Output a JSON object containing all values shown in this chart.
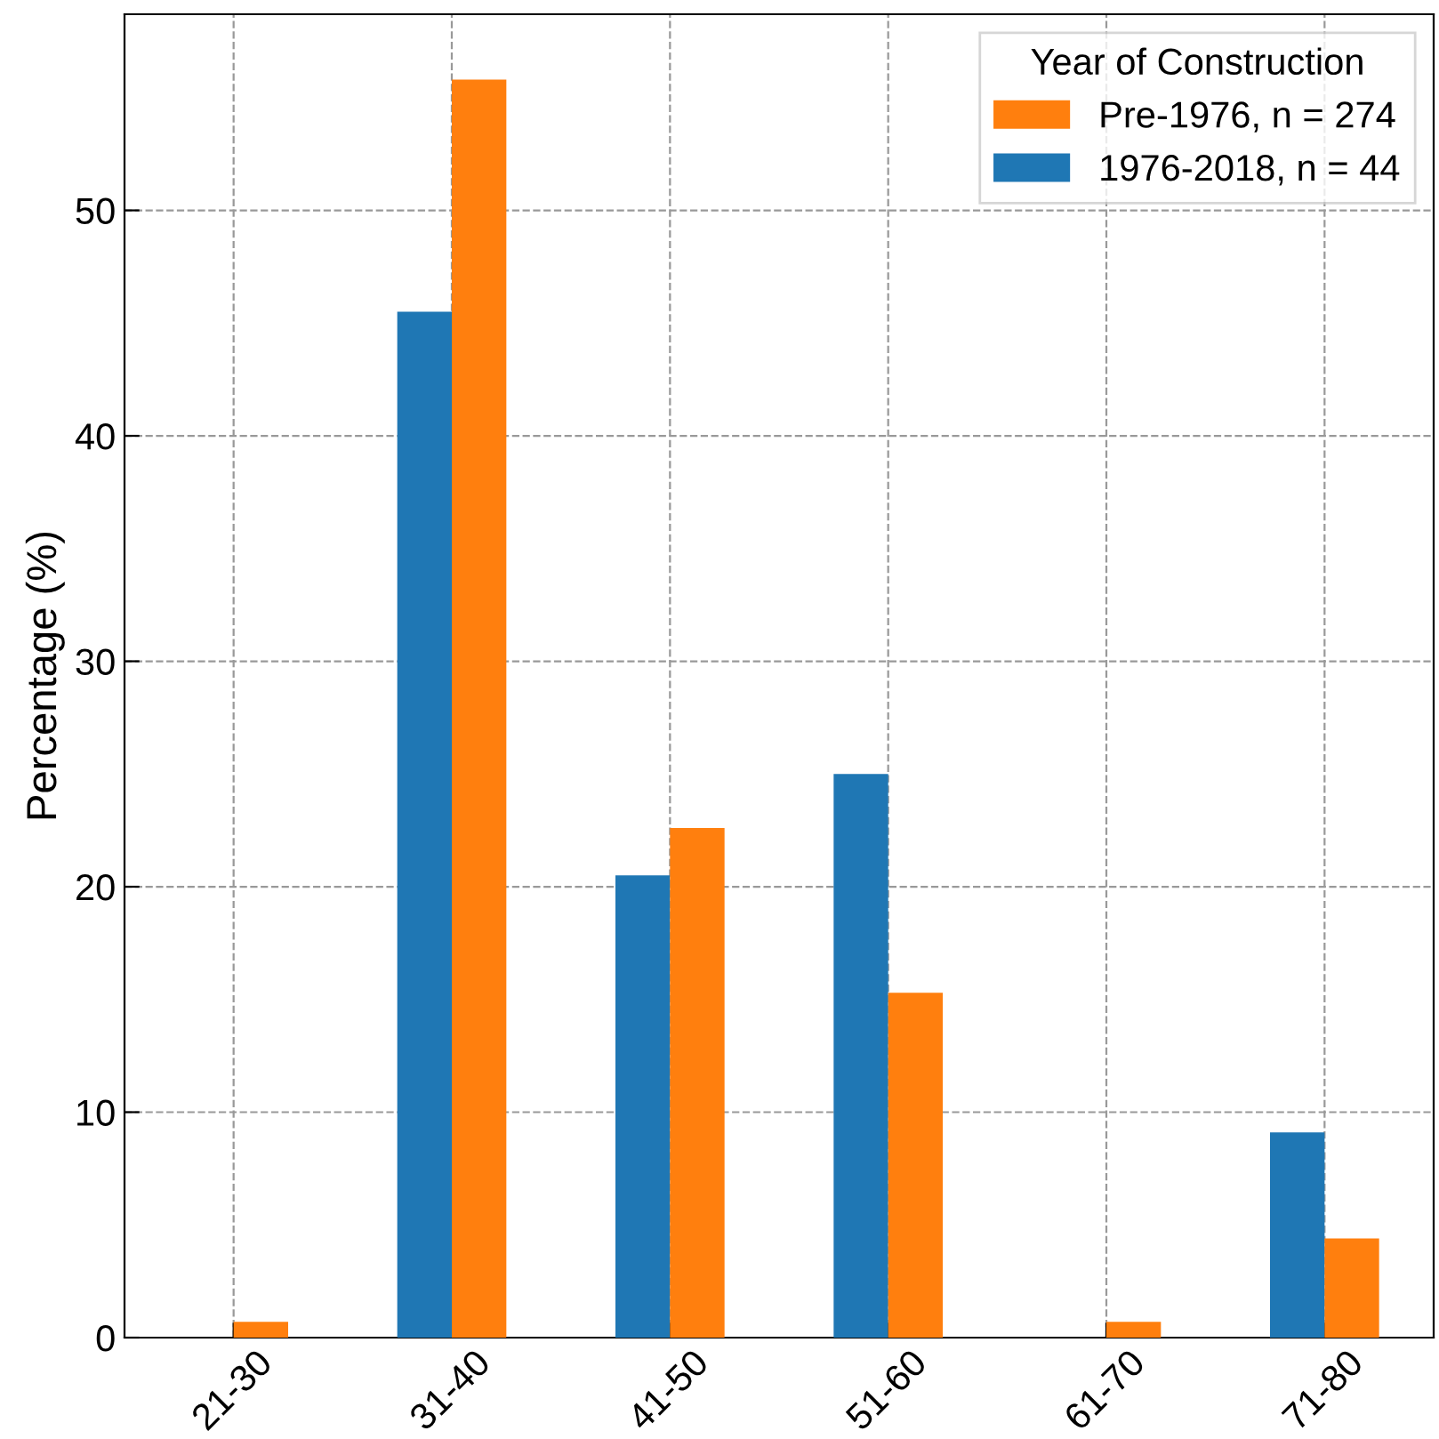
{
  "chart_data": {
    "type": "bar",
    "ylabel": "Percentage (%)",
    "legend_title": "Year of Construction",
    "categories": [
      "21-30",
      "31-40",
      "41-50",
      "51-60",
      "61-70",
      "71-80"
    ],
    "series": [
      {
        "name": "1976-2018, n = 44",
        "color": "#1f77b4",
        "values": [
          0,
          45.5,
          20.5,
          25.0,
          0,
          9.1
        ]
      },
      {
        "name": "Pre-1976, n = 274",
        "color": "#ff7f0e",
        "values": [
          0.7,
          55.8,
          22.6,
          15.3,
          0.7,
          4.4
        ]
      }
    ],
    "ylim": [
      0,
      58.7
    ],
    "yticks": [
      0,
      10,
      20,
      30,
      40,
      50
    ],
    "grid": true,
    "legend": "top right"
  }
}
